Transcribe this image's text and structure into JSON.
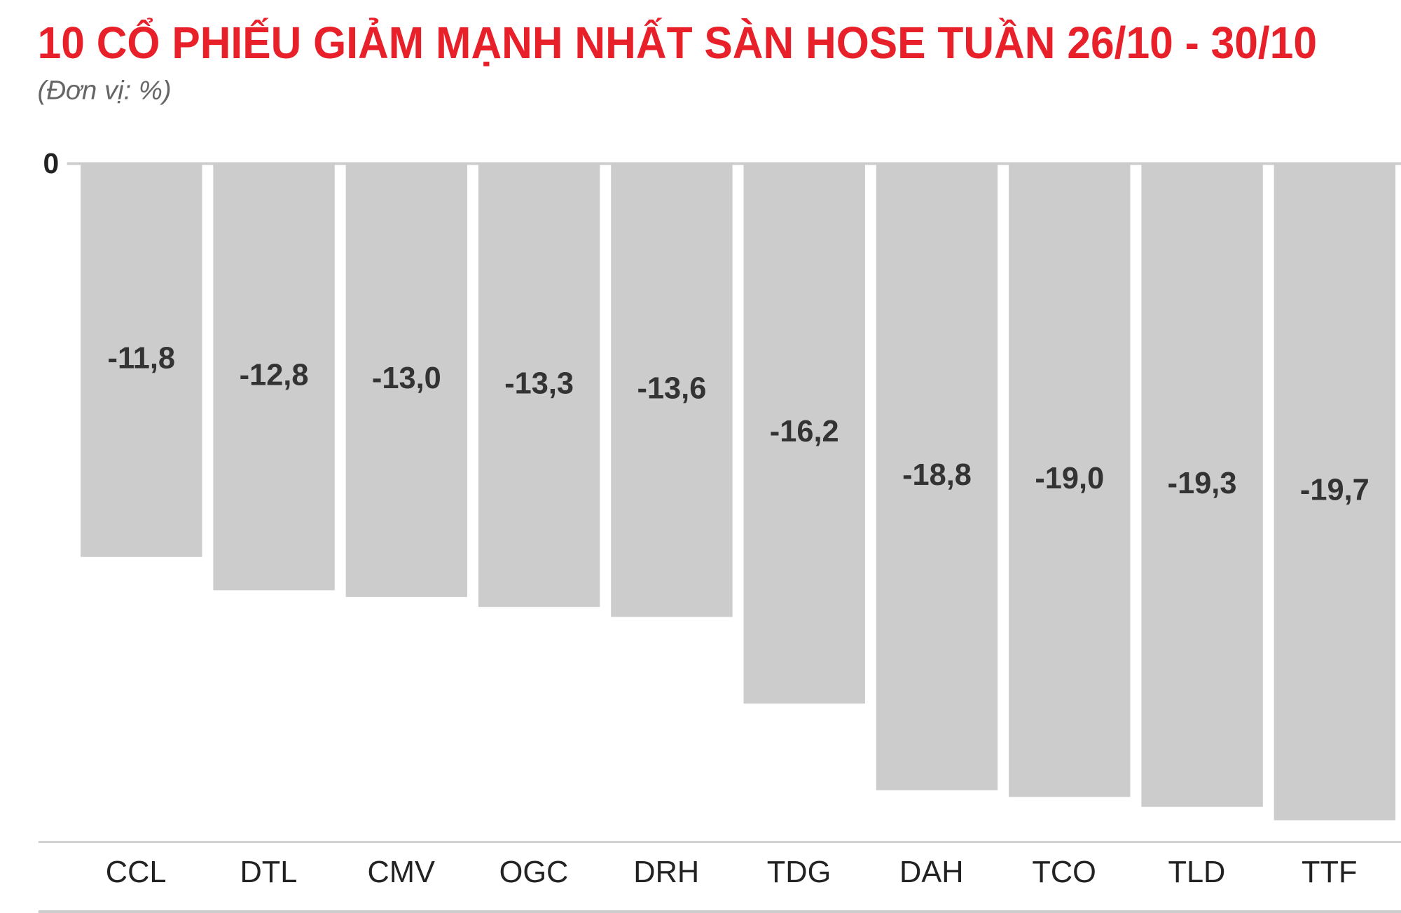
{
  "chart_data": {
    "type": "bar",
    "title": "10 CỔ PHIẾU GIẢM MẠNH NHẤT SÀN HOSE TUẦN 26/10 - 30/10",
    "subtitle": "(Đơn vị: %)",
    "categories": [
      "CCL",
      "DTL",
      "CMV",
      "OGC",
      "DRH",
      "TDG",
      "DAH",
      "TCO",
      "TLD",
      "TTF"
    ],
    "values": [
      -11.8,
      -12.8,
      -13.0,
      -13.3,
      -13.6,
      -16.2,
      -18.8,
      -19.0,
      -19.3,
      -19.7
    ],
    "value_labels": [
      "-11,8",
      "-12,8",
      "-13,0",
      "-13,3",
      "-13,6",
      "-16,2",
      "-18,8",
      "-19,0",
      "-19,3",
      "-19,7"
    ],
    "color": "#cccccc",
    "ylim": [
      -20.35,
      0
    ],
    "yticks": [
      0
    ],
    "grid": true
  }
}
